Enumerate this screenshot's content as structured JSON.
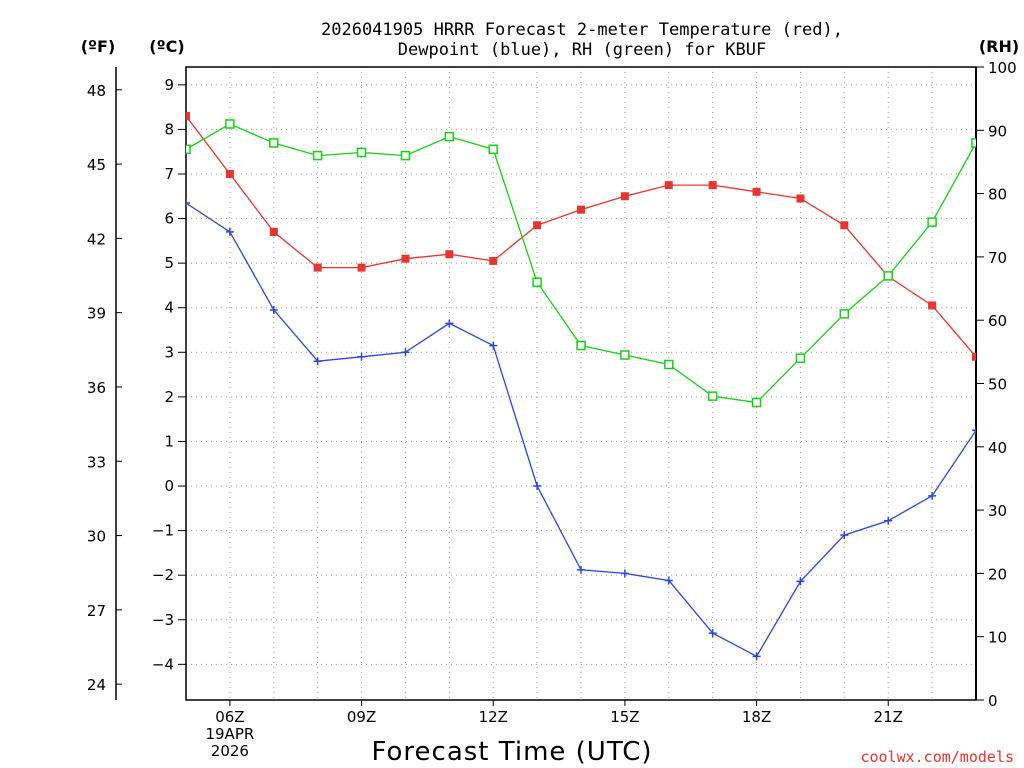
{
  "chart_data": {
    "type": "line",
    "title_lines": [
      "2026041905 HRRR Forecast 2-meter Temperature (red),",
      "Dewpoint (blue), RH (green) for KBUF"
    ],
    "xlabel": "Forecast Time (UTC)",
    "x_hours": [
      5,
      6,
      7,
      8,
      9,
      10,
      11,
      12,
      13,
      14,
      15,
      16,
      17,
      18,
      19,
      20,
      21,
      22,
      23
    ],
    "x_ticks": [
      {
        "hour": 6,
        "lines": [
          "06Z",
          "19APR",
          "2026"
        ]
      },
      {
        "hour": 9,
        "lines": [
          "09Z"
        ]
      },
      {
        "hour": 12,
        "lines": [
          "12Z"
        ]
      },
      {
        "hour": 15,
        "lines": [
          "15Z"
        ]
      },
      {
        "hour": 18,
        "lines": [
          "18Z"
        ]
      },
      {
        "hour": 21,
        "lines": [
          "21Z"
        ]
      }
    ],
    "x_range": [
      5,
      23
    ],
    "celsius_axis": {
      "label": "(ºC)",
      "range": [
        -4.8,
        9.4
      ],
      "ticks": [
        "9",
        "8",
        "7",
        "6",
        "5",
        "4",
        "3",
        "2",
        "1",
        "0",
        "−1",
        "−2",
        "−3",
        "−4"
      ],
      "tick_values": [
        9,
        8,
        7,
        6,
        5,
        4,
        3,
        2,
        1,
        0,
        -1,
        -2,
        -3,
        -4
      ]
    },
    "fahrenheit_axis": {
      "label": "(ºF)",
      "ticks": [
        "48",
        "45",
        "42",
        "39",
        "36",
        "33",
        "30",
        "27",
        "24"
      ],
      "tick_values": [
        48,
        45,
        42,
        39,
        36,
        33,
        30,
        27,
        24
      ]
    },
    "rh_axis": {
      "label": "(RH)",
      "range": [
        0,
        100
      ],
      "ticks": [
        "100",
        "90",
        "80",
        "70",
        "60",
        "50",
        "40",
        "30",
        "20",
        "10",
        "0"
      ],
      "tick_values": [
        100,
        90,
        80,
        70,
        60,
        50,
        40,
        30,
        20,
        10,
        0
      ]
    },
    "series": [
      {
        "name": "Temperature",
        "unit": "C",
        "color": "#e8352f",
        "marker": "filled-square",
        "values": [
          8.3,
          7.0,
          5.7,
          4.9,
          4.9,
          5.1,
          5.2,
          5.05,
          5.85,
          6.2,
          6.5,
          6.75,
          6.75,
          6.6,
          6.45,
          5.85,
          4.7,
          4.05,
          2.9
        ]
      },
      {
        "name": "Dewpoint",
        "unit": "C",
        "color": "#2b45e6",
        "marker": "plus",
        "values": [
          6.35,
          5.7,
          3.95,
          2.8,
          2.9,
          3.0,
          3.65,
          3.15,
          0.0,
          -1.88,
          -1.96,
          -2.12,
          -3.3,
          -3.82,
          -2.14,
          -1.1,
          -0.78,
          -0.22,
          1.25
        ]
      },
      {
        "name": "RH",
        "unit": "%",
        "color": "#18d018",
        "marker": "open-square",
        "values": [
          87,
          91,
          88,
          86,
          86.5,
          86,
          89,
          87,
          66,
          56,
          54.5,
          53,
          48,
          47,
          54,
          61,
          67,
          75.5,
          88
        ]
      }
    ],
    "grid": true
  },
  "credit": "coolwx.com/models"
}
